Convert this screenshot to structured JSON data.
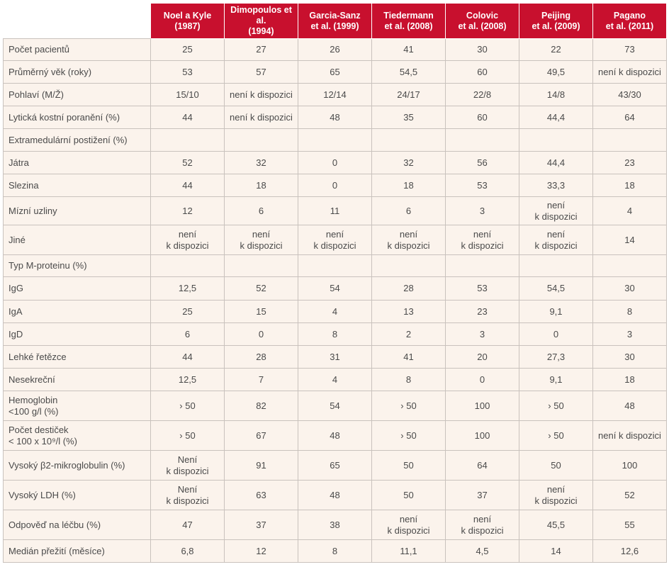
{
  "columns": [
    "Noel a Kyle\n(1987)",
    "Dimopoulos et al.\n(1994)",
    "Garcia-Sanz\net al. (1999)",
    "Tiedermann\net al. (2008)",
    "Colovic\net al. (2008)",
    "Peijing\net al. (2009)",
    "Pagano\net al. (2011)"
  ],
  "rows": [
    {
      "label": "Počet pacientů",
      "values": [
        "25",
        "27",
        "26",
        "41",
        "30",
        "22",
        "73"
      ],
      "h": 31
    },
    {
      "label": "Průměrný věk (roky)",
      "values": [
        "53",
        "57",
        "65",
        "54,5",
        "60",
        "49,5",
        "není k dispozici"
      ],
      "h": 32
    },
    {
      "label": "Pohlaví (M/Ž)",
      "values": [
        "15/10",
        "není k dispozici",
        "12/14",
        "24/17",
        "22/8",
        "14/8",
        "43/30"
      ],
      "h": 32
    },
    {
      "label": "Lytická kostní poranění (%)",
      "values": [
        "44",
        "není k dispozici",
        "48",
        "35",
        "60",
        "44,4",
        "64"
      ],
      "h": 32
    },
    {
      "label": "Extramedulární postižení (%)",
      "values": [
        "",
        "",
        "",
        "",
        "",
        "",
        ""
      ],
      "h": 32
    },
    {
      "label": "Játra",
      "values": [
        "52",
        "32",
        "0",
        "32",
        "56",
        "44,4",
        "23"
      ],
      "h": 32
    },
    {
      "label": "Slezina",
      "values": [
        "44",
        "18",
        "0",
        "18",
        "53",
        "33,3",
        "18"
      ],
      "h": 32
    },
    {
      "label": "Mízní uzliny",
      "values": [
        "12",
        "6",
        "11",
        "6",
        "3",
        "není\nk dispozici",
        "4"
      ],
      "h": 40
    },
    {
      "label": "Jiné",
      "values": [
        "není\nk dispozici",
        "není\nk dispozici",
        "není\nk dispozici",
        "není\nk dispozici",
        "není\nk dispozici",
        "není\nk dispozici",
        "14"
      ],
      "h": 42
    },
    {
      "label": "Typ M-proteinu (%)",
      "values": [
        "",
        "",
        "",
        "",
        "",
        "",
        ""
      ],
      "h": 31
    },
    {
      "label": "IgG",
      "values": [
        "12,5",
        "52",
        "54",
        "28",
        "53",
        "54,5",
        "30"
      ],
      "h": 33
    },
    {
      "label": "IgA",
      "values": [
        "25",
        "15",
        "4",
        "13",
        "23",
        "9,1",
        "8"
      ],
      "h": 32
    },
    {
      "label": "IgD",
      "values": [
        "6",
        "0",
        "8",
        "2",
        "3",
        "0",
        "3"
      ],
      "h": 32
    },
    {
      "label": "Lehké řetězce",
      "values": [
        "44",
        "28",
        "31",
        "41",
        "20",
        "27,3",
        "30"
      ],
      "h": 32
    },
    {
      "label": "Nesekreční",
      "values": [
        "12,5",
        "7",
        "4",
        "8",
        "0",
        "9,1",
        "18"
      ],
      "h": 32
    },
    {
      "label": "Hemoglobin\n<100 g/l (%)",
      "values": [
        "› 50",
        "82",
        "54",
        "› 50",
        "100",
        "› 50",
        "48"
      ],
      "h": 42
    },
    {
      "label": "Počet destiček\n< 100 x 10⁹/l (%)",
      "values": [
        "› 50",
        "67",
        "48",
        "› 50",
        "100",
        "› 50",
        "není k dispozici"
      ],
      "h": 42
    },
    {
      "label": "Vysoký β2-mikroglobulin (%)",
      "values": [
        "Není\nk dispozici",
        "91",
        "65",
        "50",
        "64",
        "50",
        "100"
      ],
      "h": 42
    },
    {
      "label": "Vysoký LDH (%)",
      "values": [
        "Není\nk dispozici",
        "63",
        "48",
        "50",
        "37",
        "není\nk dispozici",
        "52"
      ],
      "h": 42
    },
    {
      "label": "Odpověď na léčbu (%)",
      "values": [
        "47",
        "37",
        "38",
        "není\nk dispozici",
        "není\nk dispozici",
        "45,5",
        "55"
      ],
      "h": 42
    },
    {
      "label": "Medián přežití (měsíce)",
      "values": [
        "6,8",
        "12",
        "8",
        "11,1",
        "4,5",
        "14",
        "12,6"
      ],
      "h": 32
    }
  ]
}
